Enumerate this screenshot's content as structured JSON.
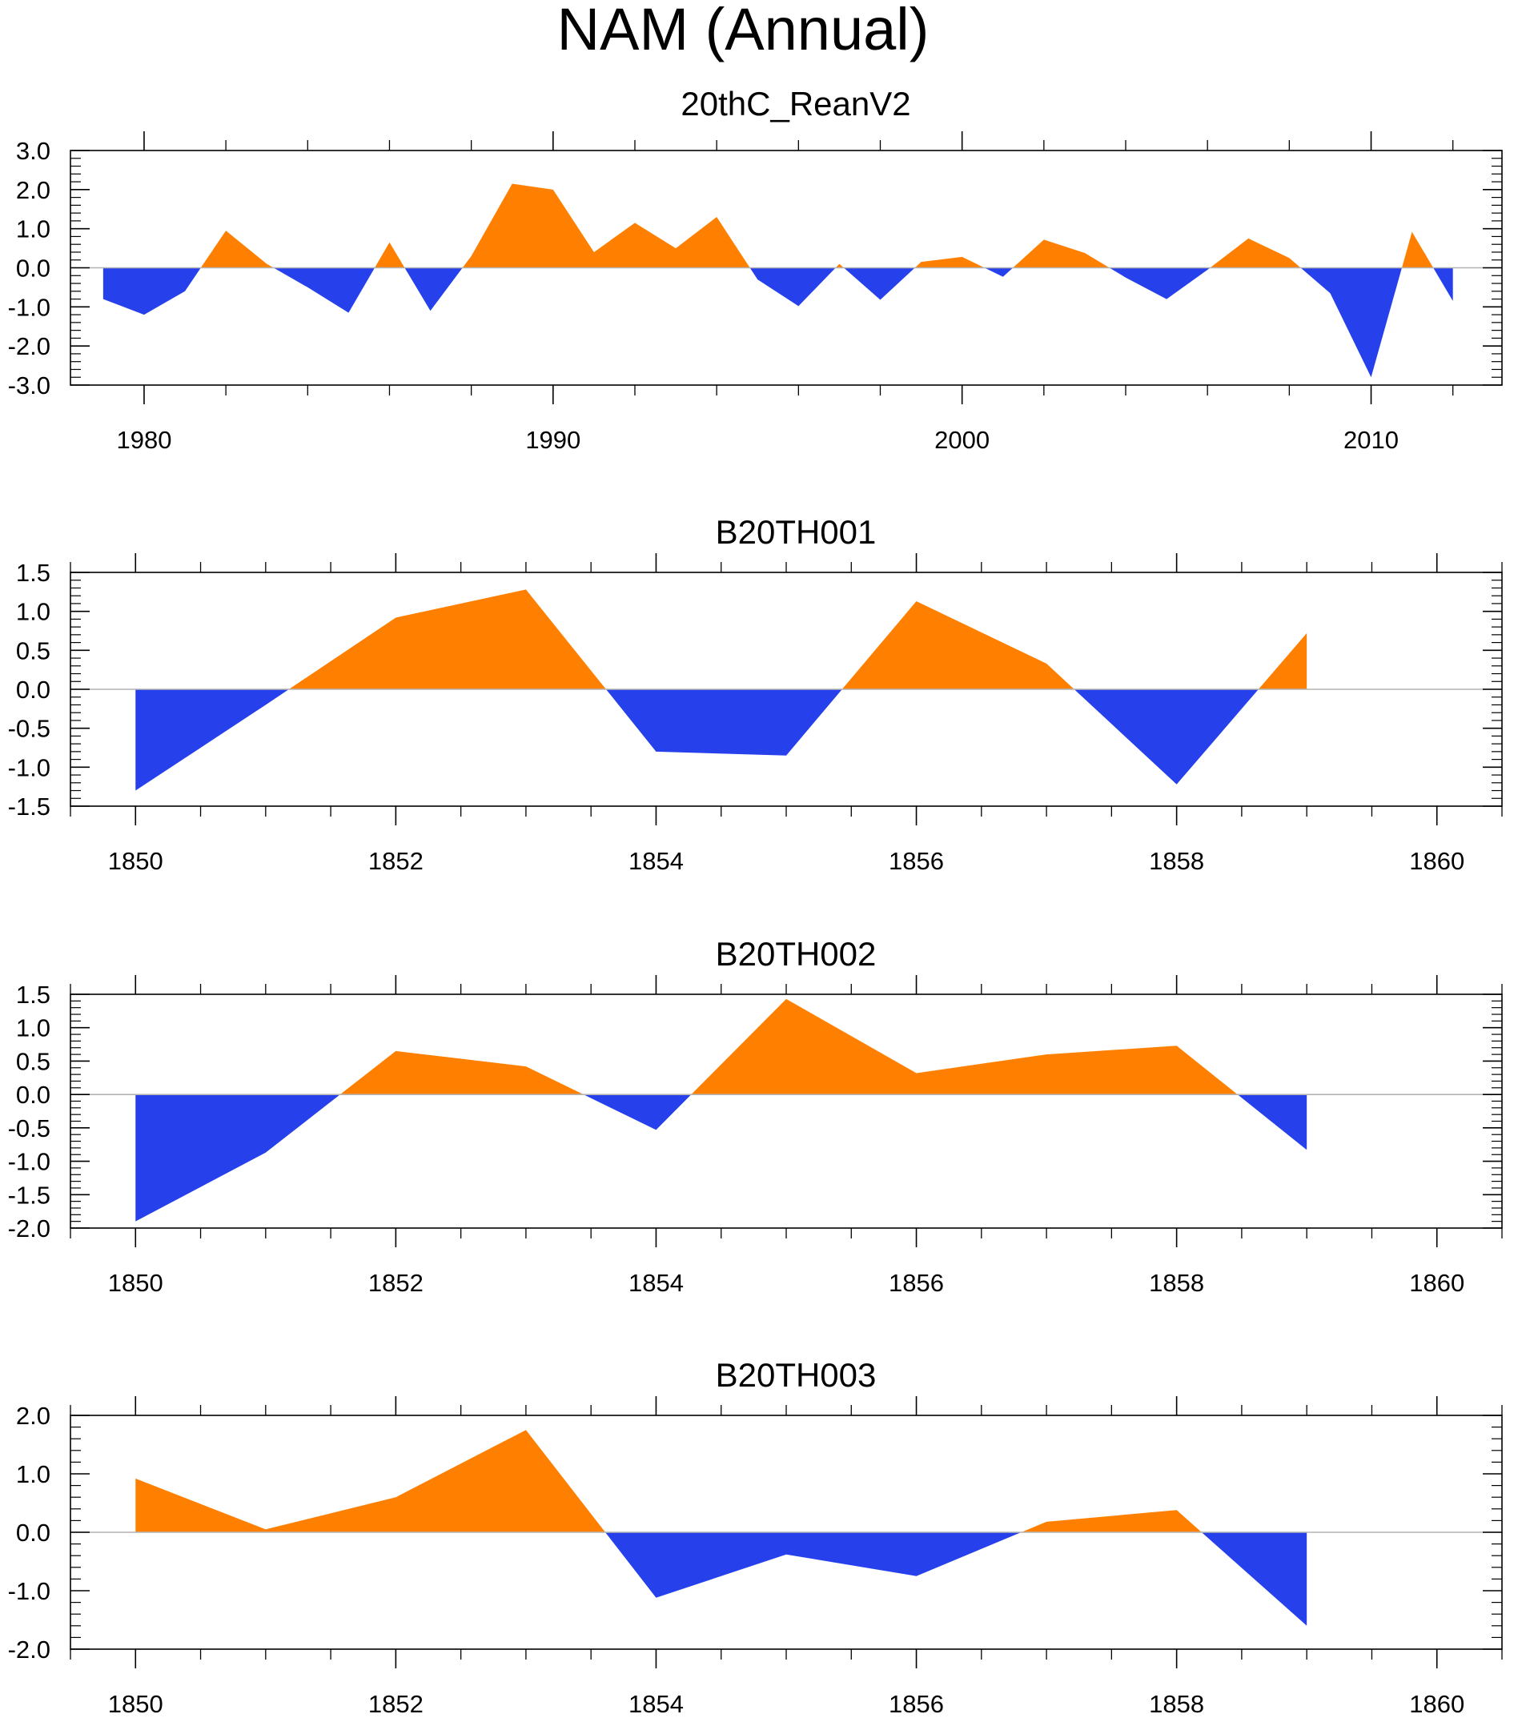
{
  "title": "NAM (Annual)",
  "colors": {
    "positive": "#ff8000",
    "negative": "#2641ec",
    "axis": "#000000",
    "zero_line": "#b4b4b4"
  },
  "chart_data": [
    {
      "type": "area",
      "title": "20thC_ReanV2",
      "xlabel": "",
      "ylabel": "",
      "xlim": [
        1978.2,
        2013.2
      ],
      "ylim": [
        -3.0,
        3.0
      ],
      "x_ticks": [
        1980,
        1990,
        2000,
        2010
      ],
      "x_tick_labels": [
        "1980",
        "1990",
        "2000",
        "2010"
      ],
      "y_ticks": [
        -3,
        -2,
        -1,
        0,
        1,
        2,
        3
      ],
      "y_tick_labels": [
        "-3.0",
        "-2.0",
        "-1.0",
        "0.0",
        "1.0",
        "2.0",
        "3.0"
      ],
      "x_minor_step": 2,
      "y_minor_step": 0.2,
      "x": [
        1979,
        1980,
        1981,
        1982,
        1983,
        1984,
        1985,
        1986,
        1987,
        1988,
        1989,
        1990,
        1991,
        1992,
        1993,
        1994,
        1995,
        1996,
        1997,
        1998,
        1999,
        2000,
        2001,
        2002,
        2003,
        2004,
        2005,
        2006,
        2007,
        2008,
        2009,
        2010,
        2011,
        2012
      ],
      "values": [
        -0.8,
        -1.2,
        -0.6,
        0.95,
        0.1,
        -0.5,
        -1.15,
        0.65,
        -1.1,
        0.3,
        2.15,
        2.0,
        0.4,
        1.15,
        0.5,
        1.3,
        -0.3,
        -0.98,
        0.1,
        -0.82,
        0.15,
        0.28,
        -0.23,
        0.72,
        0.38,
        -0.25,
        -0.8,
        -0.05,
        0.75,
        0.25,
        -0.65,
        -2.8,
        0.92,
        -0.85
      ]
    },
    {
      "type": "area",
      "title": "B20TH001",
      "xlabel": "",
      "ylabel": "",
      "xlim": [
        1849.5,
        1860.5
      ],
      "ylim": [
        -1.5,
        1.5
      ],
      "x_ticks": [
        1850,
        1852,
        1854,
        1856,
        1858,
        1860
      ],
      "x_tick_labels": [
        "1850",
        "1852",
        "1854",
        "1856",
        "1858",
        "1860"
      ],
      "y_ticks": [
        -1.5,
        -1.0,
        -0.5,
        0,
        0.5,
        1.0,
        1.5
      ],
      "y_tick_labels": [
        "-1.5",
        "-1.0",
        "-0.5",
        "0.0",
        "0.5",
        "1.0",
        "1.5"
      ],
      "x_minor_step": 0.5,
      "y_minor_step": 0.1,
      "x": [
        1850,
        1851,
        1852,
        1853,
        1854,
        1855,
        1856,
        1857,
        1858,
        1859
      ],
      "values": [
        -1.3,
        -0.2,
        0.92,
        1.28,
        -0.8,
        -0.85,
        1.13,
        0.33,
        -1.22,
        0.72
      ]
    },
    {
      "type": "area",
      "title": "B20TH002",
      "xlabel": "",
      "ylabel": "",
      "xlim": [
        1849.5,
        1860.5
      ],
      "ylim": [
        -2.0,
        1.5
      ],
      "x_ticks": [
        1850,
        1852,
        1854,
        1856,
        1858,
        1860
      ],
      "x_tick_labels": [
        "1850",
        "1852",
        "1854",
        "1856",
        "1858",
        "1860"
      ],
      "y_ticks": [
        -2.0,
        -1.5,
        -1.0,
        -0.5,
        0,
        0.5,
        1.0,
        1.5
      ],
      "y_tick_labels": [
        "-2.0",
        "-1.5",
        "-1.0",
        "-0.5",
        "0.0",
        "0.5",
        "1.0",
        "1.5"
      ],
      "x_minor_step": 0.5,
      "y_minor_step": 0.1,
      "x": [
        1850,
        1851,
        1852,
        1853,
        1854,
        1855,
        1856,
        1857,
        1858,
        1859
      ],
      "values": [
        -1.9,
        -0.87,
        0.65,
        0.42,
        -0.53,
        1.43,
        0.32,
        0.6,
        0.73,
        -0.83
      ]
    },
    {
      "type": "area",
      "title": "B20TH003",
      "xlabel": "",
      "ylabel": "",
      "xlim": [
        1849.5,
        1860.5
      ],
      "ylim": [
        -2.0,
        2.0
      ],
      "x_ticks": [
        1850,
        1852,
        1854,
        1856,
        1858,
        1860
      ],
      "x_tick_labels": [
        "1850",
        "1852",
        "1854",
        "1856",
        "1858",
        "1860"
      ],
      "y_ticks": [
        -2,
        -1,
        0,
        1,
        2
      ],
      "y_tick_labels": [
        "-2.0",
        "-1.0",
        "0.0",
        "1.0",
        "2.0"
      ],
      "x_minor_step": 0.5,
      "y_minor_step": 0.2,
      "x": [
        1850,
        1851,
        1852,
        1853,
        1854,
        1855,
        1856,
        1857,
        1858,
        1859
      ],
      "values": [
        0.92,
        0.05,
        0.6,
        1.75,
        -1.12,
        -0.38,
        -0.75,
        0.18,
        0.38,
        -1.6
      ]
    }
  ]
}
